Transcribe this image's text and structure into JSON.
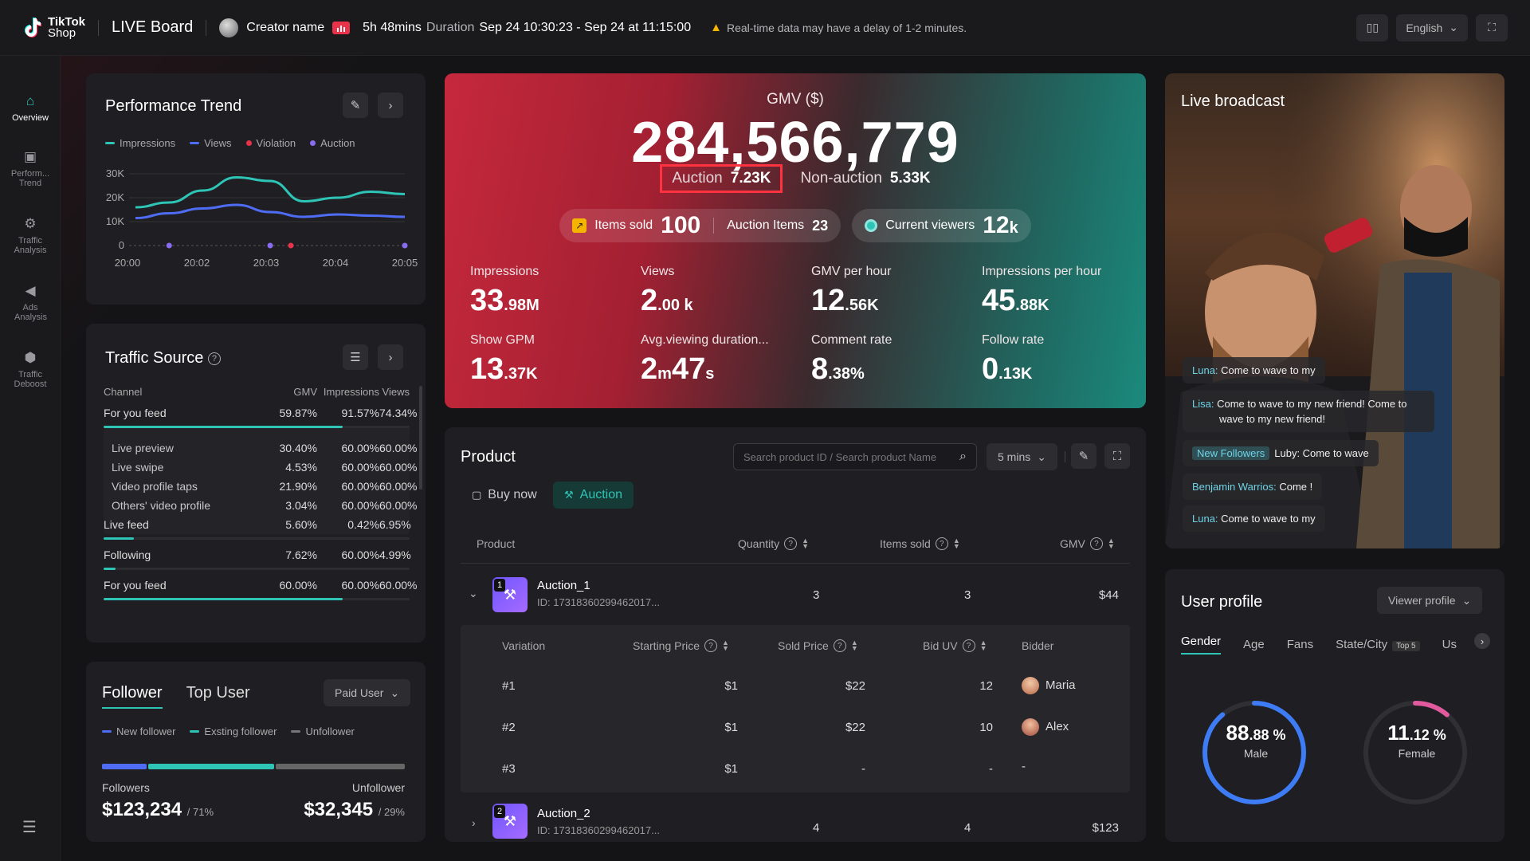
{
  "topbar": {
    "logo_line1": "TikTok",
    "logo_line2": "Shop",
    "board_title": "LIVE Board",
    "creator_name": "Creator name",
    "duration_value": "5h 48mins",
    "duration_label": "Duration",
    "time_range": "Sep 24 10:30:23 - Sep 24 at 11:15:00",
    "warning": "Real-time data may have a delay of 1-2 minutes.",
    "language": "English"
  },
  "sidebar": {
    "items": [
      {
        "label": "Overview",
        "icon": "home-icon"
      },
      {
        "label": "Perform... Trend",
        "icon": "trend-icon"
      },
      {
        "label": "Traffic Analysis",
        "icon": "traffic-icon"
      },
      {
        "label": "Ads Analysis",
        "icon": "megaphone-icon"
      },
      {
        "label": "Traffic Deboost",
        "icon": "shield-icon"
      }
    ]
  },
  "performance": {
    "title": "Performance Trend",
    "legend": [
      "Impressions",
      "Views",
      "Violation",
      "Auction"
    ],
    "colors": {
      "impressions": "#2ec4b6",
      "views": "#4f6cf5",
      "violation": "#e8334a",
      "auction": "#8a6cf0"
    },
    "y_ticks": [
      "30K",
      "20K",
      "10K",
      "0"
    ],
    "x_ticks": [
      "20:00",
      "20:02",
      "20:03",
      "20:04",
      "20:05"
    ]
  },
  "chart_data": {
    "type": "line",
    "title": "Performance Trend",
    "x": [
      "20:00",
      "20:01",
      "20:02",
      "20:02.5",
      "20:03",
      "20:03.5",
      "20:04",
      "20:04.5",
      "20:05"
    ],
    "series": [
      {
        "name": "Impressions",
        "values": [
          16000,
          18000,
          23000,
          28500,
          27000,
          18500,
          20000,
          22500,
          21500
        ]
      },
      {
        "name": "Views",
        "values": [
          11500,
          13500,
          15500,
          17000,
          14000,
          12000,
          13000,
          12500,
          12000
        ]
      }
    ],
    "markers": [
      {
        "name": "Auction",
        "x": [
          "20:01",
          "20:03",
          "20:05"
        ]
      },
      {
        "name": "Violation",
        "x": [
          "20:03"
        ]
      }
    ],
    "ylim": [
      0,
      30000
    ],
    "y_ticks": [
      "0",
      "10K",
      "20K",
      "30K"
    ],
    "x_ticks": [
      "20:00",
      "20:02",
      "20:03",
      "20:04",
      "20:05"
    ],
    "grid": true,
    "legend": "top-left"
  },
  "traffic": {
    "title": "Traffic Source",
    "headers": [
      "Channel",
      "GMV",
      "Impressions",
      "Views"
    ],
    "rows": [
      {
        "channel": "For you feed",
        "gmv": "59.87%",
        "imp": "91.57%",
        "views": "74.34%",
        "bar": 0.78
      },
      {
        "channel": "Live preview",
        "gmv": "30.40%",
        "imp": "60.00%",
        "views": "60.00%"
      },
      {
        "channel": "Live swipe",
        "gmv": "4.53%",
        "imp": "60.00%",
        "views": "60.00%"
      },
      {
        "channel": "Video profile taps",
        "gmv": "21.90%",
        "imp": "60.00%",
        "views": "60.00%"
      },
      {
        "channel": "Others' video profile",
        "gmv": "3.04%",
        "imp": "60.00%",
        "views": "60.00%"
      },
      {
        "channel": "Live feed",
        "gmv": "5.60%",
        "imp": "0.42%",
        "views": "6.95%",
        "bar": 0.1
      },
      {
        "channel": "Following",
        "gmv": "7.62%",
        "imp": "60.00%",
        "views": "4.99%",
        "bar": 0.04
      },
      {
        "channel": "For you feed",
        "gmv": "60.00%",
        "imp": "60.00%",
        "views": "60.00%",
        "bar": 0.78
      }
    ]
  },
  "follower": {
    "tab_follower": "Follower",
    "tab_top_user": "Top User",
    "dropdown": "Paid User",
    "legend": [
      "New follower",
      "Exsting follower",
      "Unfollower"
    ],
    "bar": {
      "new": 0.15,
      "existing": 0.42,
      "unfollow": 0.43
    },
    "followers_label": "Followers",
    "unfollower_label": "Unfollower",
    "followers_value": "$123,234",
    "followers_pct": "/ 71%",
    "unfollower_value": "$32,345",
    "unfollower_pct": "/ 29%"
  },
  "gmv": {
    "title": "GMV ($)",
    "value": "284,566,779",
    "auction_label": "Auction",
    "auction_value": "7.23K",
    "nonauction_label": "Non-auction",
    "nonauction_value": "5.33K",
    "items_sold_label": "Items sold",
    "items_sold_value": "100",
    "auction_items_label": "Auction Items",
    "auction_items_value": "23",
    "viewers_label": "Current viewers",
    "viewers_value": "12",
    "viewers_unit": "k",
    "stats": [
      {
        "label": "Impressions",
        "value": "33",
        "unit": ".98M"
      },
      {
        "label": "Views",
        "value": "2",
        "unit": ".00 k"
      },
      {
        "label": "GMV per hour",
        "value": "12",
        "unit": ".56K"
      },
      {
        "label": "Impressions per hour",
        "value": "45",
        "unit": ".88K"
      },
      {
        "label": "Show GPM",
        "value": "13",
        "unit": ".37K"
      },
      {
        "label": "Avg.viewing duration...",
        "value": "2",
        "unit": "m",
        "value2": "47",
        "unit2": "s"
      },
      {
        "label": "Comment rate",
        "value": "8",
        "unit": ".38%"
      },
      {
        "label": "Follow rate",
        "value": "0",
        "unit": ".13K"
      }
    ]
  },
  "product": {
    "title": "Product",
    "search_placeholder": "Search product ID / Search product Name",
    "interval": "5 mins",
    "tab_buy": "Buy now",
    "tab_auction": "Auction",
    "headers": {
      "product": "Product",
      "quantity": "Quantity",
      "items_sold": "Items sold",
      "gmv": "GMV"
    },
    "rows": [
      {
        "rank": "1",
        "name": "Auction_1",
        "id": "ID: 17318360299462017...",
        "quantity": "3",
        "items_sold": "3",
        "gmv": "$44"
      },
      {
        "rank": "2",
        "name": "Auction_2",
        "id": "ID: 17318360299462017...",
        "quantity": "4",
        "items_sold": "4",
        "gmv": "$123"
      }
    ],
    "var_headers": {
      "variation": "Variation",
      "starting": "Starting Price",
      "sold": "Sold Price",
      "bid": "Bid UV",
      "bidder": "Bidder"
    },
    "variations": [
      {
        "v": "#1",
        "start": "$1",
        "sold": "$22",
        "bid": "12",
        "bidder": "Maria"
      },
      {
        "v": "#2",
        "start": "$1",
        "sold": "$22",
        "bid": "10",
        "bidder": "Alex"
      },
      {
        "v": "#3",
        "start": "$1",
        "sold": "-",
        "bid": "-",
        "bidder": "-"
      }
    ]
  },
  "live": {
    "title": "Live broadcast",
    "chats": [
      {
        "name": "Luna:",
        "text": "Come to wave to my"
      },
      {
        "name": "Lisa:",
        "text": "Come to wave to my new friend! Come to wave to my new friend!"
      },
      {
        "name": "New Followers",
        "text": "Luby: Come to wave"
      },
      {
        "name": "Benjamin Warrios:",
        "text": "Come !"
      },
      {
        "name": "Luna:",
        "text": "Come to wave to my"
      }
    ]
  },
  "profile": {
    "title": "User profile",
    "dropdown": "Viewer profile",
    "tabs": [
      "Gender",
      "Age",
      "Fans",
      "State/City",
      "Us"
    ],
    "top5": "Top 5",
    "male_value": "88",
    "male_unit": ".88 %",
    "male_label": "Male",
    "male_fraction": 0.8888,
    "female_value": "11",
    "female_unit": ".12 %",
    "female_label": "Female",
    "female_fraction": 0.1112
  }
}
